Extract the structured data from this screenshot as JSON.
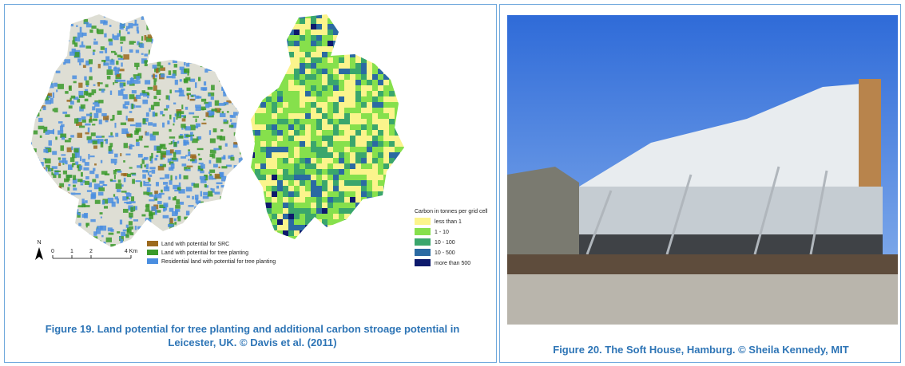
{
  "figures": [
    {
      "caption": "Figure 19. Land potential for tree planting and additional carbon stroage potential in Leicester, UK. © Davis et al. (2011)",
      "map_legend": {
        "items": [
          {
            "label": "Land with potential for SRC",
            "color": "#9c6a1e"
          },
          {
            "label": "Land with potential for tree planting",
            "color": "#3a9a2a"
          },
          {
            "label": "Residential land with potential for tree planting",
            "color": "#4a8ee0"
          }
        ]
      },
      "scale_bar": {
        "north": "N",
        "labels": [
          "0",
          "1",
          "2",
          "4 Km"
        ]
      },
      "carbon_legend": {
        "title": "Carbon in tonnes per grid cell",
        "items": [
          {
            "label": "less than 1",
            "color": "#fbf48c"
          },
          {
            "label": "1 - 10",
            "color": "#86e04c"
          },
          {
            "label": "10 - 100",
            "color": "#3aa66c"
          },
          {
            "label": "10 - 500",
            "color": "#2b6aa2"
          },
          {
            "label": "more than 500",
            "color": "#0d1a6c"
          }
        ]
      }
    },
    {
      "caption": "Figure 20. The Soft House, Hamburg. © Sheila Kennedy, MIT"
    }
  ]
}
